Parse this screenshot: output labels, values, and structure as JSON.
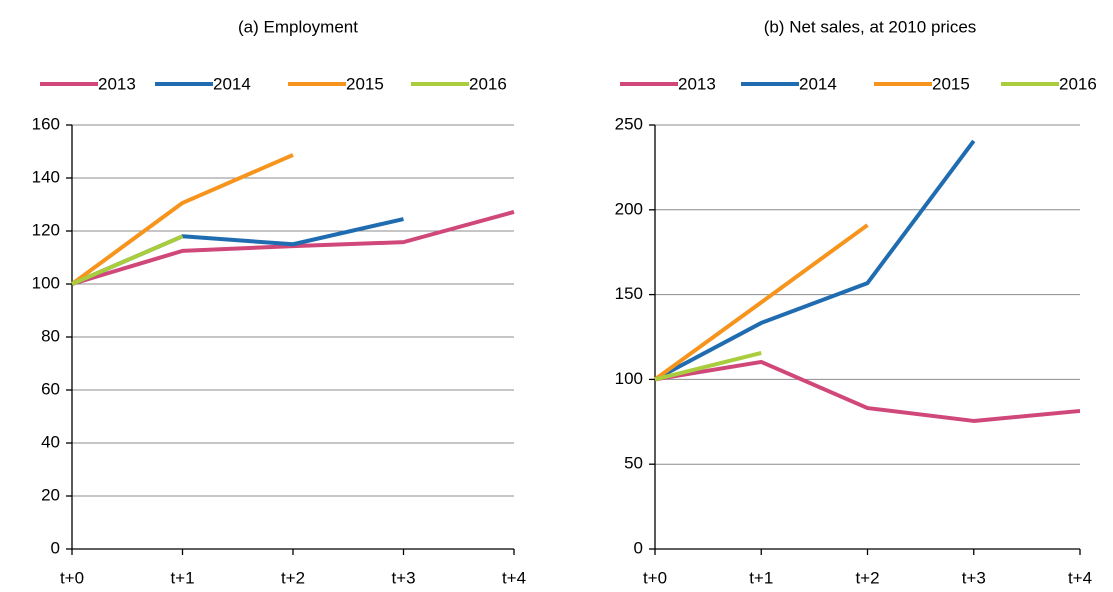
{
  "chart_data": [
    {
      "type": "line",
      "title": "(a) Employment",
      "categories": [
        "t+0",
        "t+1",
        "t+2",
        "t+3",
        "t+4"
      ],
      "series": [
        {
          "name": "2013",
          "color": "#d0487a",
          "values": [
            100,
            112.5,
            114.3,
            115.8,
            127.2
          ]
        },
        {
          "name": "2014",
          "color": "#1f6cb0",
          "values": [
            100,
            118,
            115,
            124.5,
            null
          ]
        },
        {
          "name": "2015",
          "color": "#f7941d",
          "values": [
            100,
            130.6,
            148.7,
            null,
            null
          ]
        },
        {
          "name": "2016",
          "color": "#a9cd3c",
          "values": [
            100,
            118,
            null,
            null,
            null
          ]
        }
      ],
      "ylim": [
        0,
        160
      ],
      "yticks": [
        0,
        20,
        40,
        60,
        80,
        100,
        120,
        140,
        160
      ],
      "grid": true
    },
    {
      "type": "line",
      "title": "(b) Net sales, at 2010 prices",
      "categories": [
        "t+0",
        "t+1",
        "t+2",
        "t+3",
        "t+4"
      ],
      "series": [
        {
          "name": "2013",
          "color": "#d0487a",
          "values": [
            100,
            110.3,
            83.1,
            75.5,
            81.4
          ]
        },
        {
          "name": "2014",
          "color": "#1f6cb0",
          "values": [
            100,
            133.3,
            156.8,
            240.6,
            null
          ]
        },
        {
          "name": "2015",
          "color": "#f7941d",
          "values": [
            100,
            145.4,
            191,
            null,
            null
          ]
        },
        {
          "name": "2016",
          "color": "#a9cd3c",
          "values": [
            100,
            115.6,
            null,
            null,
            null
          ]
        }
      ],
      "ylim": [
        0,
        250
      ],
      "yticks": [
        0,
        50,
        100,
        150,
        200,
        250
      ],
      "grid": true
    }
  ]
}
